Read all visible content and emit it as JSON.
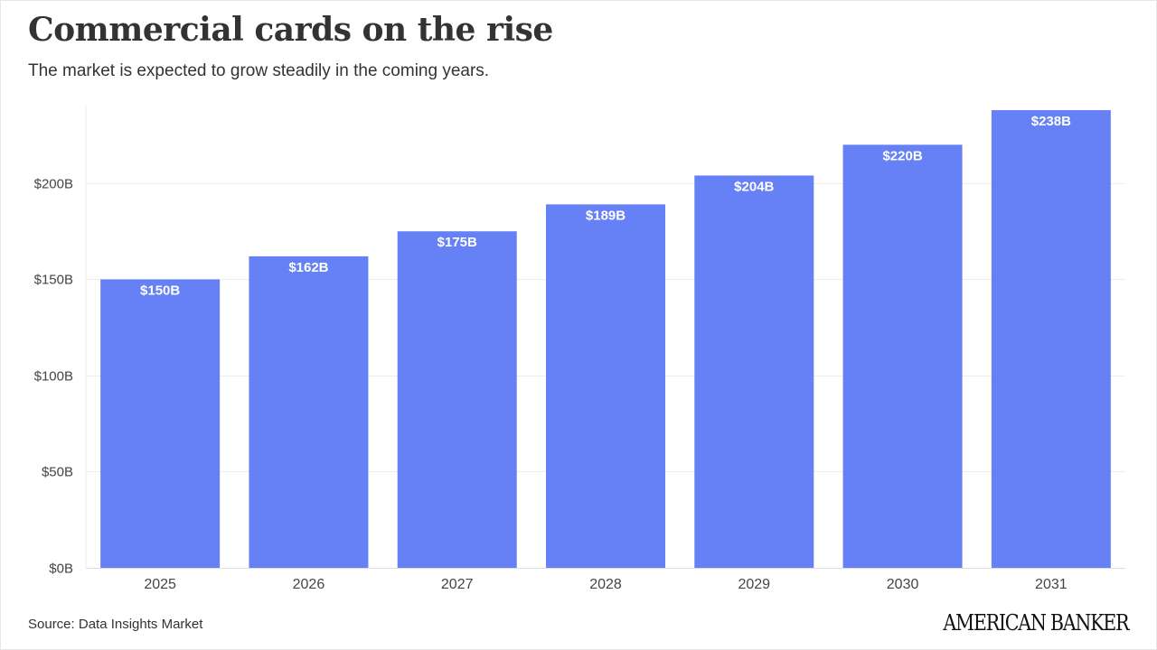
{
  "header": {
    "title": "Commercial cards on the rise",
    "subtitle": "The market is expected to grow steadily in the coming years."
  },
  "footer": {
    "source": "Source: Data Insights Market",
    "logo_text": "AMERICAN BANKER"
  },
  "colors": {
    "bar": "#6680f5",
    "grid": "#ececec",
    "axis_text": "#444444",
    "label_text": "#ffffff"
  },
  "chart_data": {
    "type": "bar",
    "title": "Commercial cards on the rise",
    "subtitle": "The market is expected to grow steadily in the coming years.",
    "categories": [
      "2025",
      "2026",
      "2027",
      "2028",
      "2029",
      "2030",
      "2031"
    ],
    "values": [
      150,
      162,
      175,
      189,
      204,
      220,
      238
    ],
    "data_labels": [
      "$150B",
      "$162B",
      "$175B",
      "$189B",
      "$204B",
      "$220B",
      "$238B"
    ],
    "ylim": [
      0,
      238
    ],
    "yticks": [
      0,
      50,
      100,
      150,
      200
    ],
    "ytick_labels": [
      "$0B",
      "$50B",
      "$100B",
      "$150B",
      "$200B"
    ],
    "xlabel": "",
    "ylabel": "",
    "grid": true,
    "legend": "none"
  }
}
